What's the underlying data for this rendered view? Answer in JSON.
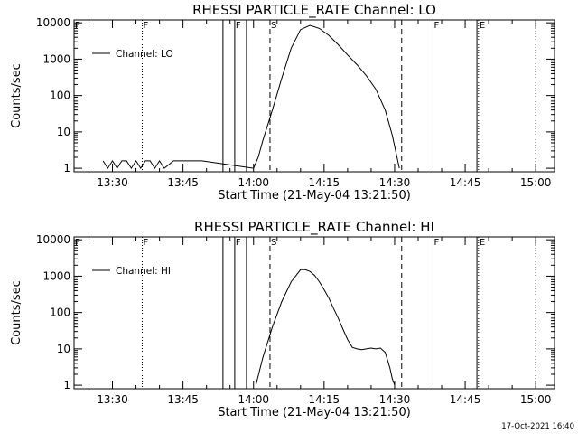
{
  "footer": {
    "timestamp": "17-Oct-2021 16:40"
  },
  "chart_data": [
    {
      "type": "line",
      "title": "RHESSI PARTICLE_RATE Channel: LO",
      "xlabel": "Start Time (21-May-04 13:21:50)",
      "ylabel": "Counts/sec",
      "y_scale": "log",
      "ylim": [
        0.8,
        12000
      ],
      "xlim": [
        "13:21:50",
        "15:04:00"
      ],
      "x_ticks": [
        "13:30",
        "13:45",
        "14:00",
        "14:15",
        "14:30",
        "14:45",
        "15:00"
      ],
      "y_ticks": [
        "1",
        "10",
        "100",
        "1000",
        "10000"
      ],
      "legend": {
        "position": "top-left"
      },
      "series": [
        {
          "name": "Channel: LO",
          "x": [
            "13:28:00",
            "13:29:00",
            "13:30:00",
            "13:31:00",
            "13:32:00",
            "13:33:00",
            "13:34:00",
            "13:35:00",
            "13:36:00",
            "13:37:00",
            "13:38:00",
            "13:39:00",
            "13:40:00",
            "13:41:00",
            "13:43:00",
            "13:46:00",
            "13:49:00",
            "14:00:00",
            "14:01:00",
            "14:02:00",
            "14:04:00",
            "14:06:00",
            "14:08:00",
            "14:10:00",
            "14:12:00",
            "14:14:00",
            "14:16:00",
            "14:18:00",
            "14:20:00",
            "14:22:00",
            "14:24:00",
            "14:26:00",
            "14:28:00",
            "14:29:30",
            "14:30:30",
            "14:31:00"
          ],
          "y": [
            1.6,
            1,
            1.6,
            1,
            1.6,
            1.6,
            1,
            1.6,
            1,
            1.6,
            1.6,
            1,
            1.6,
            1,
            1.6,
            1.6,
            1.6,
            1,
            2,
            6,
            40,
            300,
            2000,
            6500,
            8500,
            7000,
            4500,
            2500,
            1300,
            700,
            350,
            150,
            40,
            8,
            2,
            1
          ]
        }
      ],
      "vlines": [
        {
          "time": "13:36:20",
          "style": "dotted",
          "label": "F"
        },
        {
          "time": "13:53:30",
          "style": "solid",
          "label": ""
        },
        {
          "time": "13:56:00",
          "style": "solid",
          "label": "F"
        },
        {
          "time": "13:58:30",
          "style": "solid",
          "label": ""
        },
        {
          "time": "14:03:30",
          "style": "dashed",
          "label": "S"
        },
        {
          "time": "14:31:30",
          "style": "dashed",
          "label": ""
        },
        {
          "time": "14:38:10",
          "style": "solid",
          "label": "F"
        },
        {
          "time": "14:47:30",
          "style": "solid",
          "label": ""
        },
        {
          "time": "14:47:50",
          "style": "dotted",
          "label": "E"
        },
        {
          "time": "15:00:00",
          "style": "dotted",
          "label": ""
        }
      ],
      "edge_flag": "F"
    },
    {
      "type": "line",
      "title": "RHESSI PARTICLE_RATE Channel: HI",
      "xlabel": "Start Time (21-May-04 13:21:50)",
      "ylabel": "Counts/sec",
      "y_scale": "log",
      "ylim": [
        0.8,
        12000
      ],
      "xlim": [
        "13:21:50",
        "15:04:00"
      ],
      "x_ticks": [
        "13:30",
        "13:45",
        "14:00",
        "14:15",
        "14:30",
        "14:45",
        "15:00"
      ],
      "y_ticks": [
        "1",
        "10",
        "100",
        "1000",
        "10000"
      ],
      "legend": {
        "position": "top-left"
      },
      "series": [
        {
          "name": "Channel: HI",
          "x": [
            "14:00:30",
            "14:02:00",
            "14:04:00",
            "14:06:00",
            "14:08:00",
            "14:10:00",
            "14:11:00",
            "14:12:00",
            "14:13:00",
            "14:14:00",
            "14:15:00",
            "14:16:00",
            "14:17:00",
            "14:18:00",
            "14:19:00",
            "14:20:00",
            "14:21:00",
            "14:22:00",
            "14:23:00",
            "14:24:00",
            "14:25:00",
            "14:26:00",
            "14:27:00",
            "14:28:00",
            "14:29:00",
            "14:29:30",
            "14:30:00"
          ],
          "y": [
            1,
            6,
            40,
            200,
            700,
            1500,
            1500,
            1350,
            1050,
            700,
            430,
            250,
            130,
            70,
            35,
            18,
            11,
            10,
            9.5,
            10,
            10.5,
            10,
            10.5,
            8,
            3,
            1.5,
            1
          ]
        }
      ],
      "vlines": [
        {
          "time": "13:36:20",
          "style": "dotted",
          "label": "F"
        },
        {
          "time": "13:53:30",
          "style": "solid",
          "label": ""
        },
        {
          "time": "13:56:00",
          "style": "solid",
          "label": "F"
        },
        {
          "time": "13:58:30",
          "style": "solid",
          "label": ""
        },
        {
          "time": "14:03:30",
          "style": "dashed",
          "label": "S"
        },
        {
          "time": "14:31:30",
          "style": "dashed",
          "label": ""
        },
        {
          "time": "14:38:10",
          "style": "solid",
          "label": "F"
        },
        {
          "time": "14:47:30",
          "style": "solid",
          "label": ""
        },
        {
          "time": "14:47:50",
          "style": "dotted",
          "label": "E"
        },
        {
          "time": "15:00:00",
          "style": "dotted",
          "label": ""
        }
      ],
      "edge_flag": "F"
    }
  ]
}
